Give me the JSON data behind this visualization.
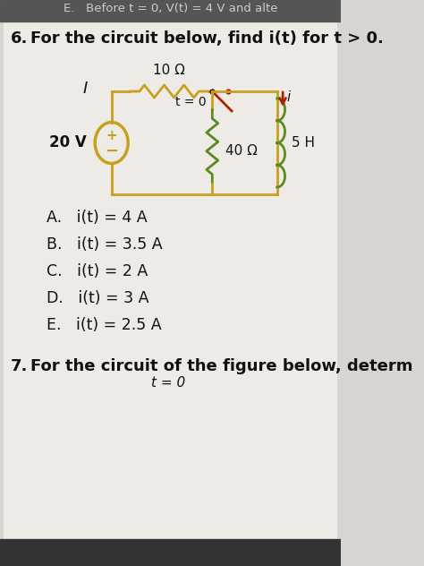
{
  "bg_color": "#d8d5d0",
  "header_text": "E.   Before t = 0, V(t) = 4 V and alte",
  "question_num": "6.",
  "question_text": "For the circuit below, find i(t) for t > 0.",
  "circuit_label_I": "I",
  "voltage_label": "20 V",
  "resistor1_label": "10 Ω",
  "switch_label": "t = 0",
  "resistor2_label": "40 Ω",
  "inductor_label": "5 H",
  "current_label": "i",
  "options": [
    "A.   i(t) = 4 A",
    "B.   i(t) = 3.5 A",
    "C.   i(t) = 2 A",
    "D.   i(t) = 3 A",
    "E.   i(t) = 2.5 A"
  ],
  "footer_num": "7.",
  "footer_text": "For the circuit of the figure below, determ",
  "footer_switch": "t = 0",
  "circuit_color": "#c8a020",
  "resistor2_color": "#5a8a20",
  "inductor_color": "#5a8a20",
  "switch_color": "#aa2200",
  "text_color": "#111111",
  "header_color": "#222222",
  "page_bg": "#e8e5e0"
}
